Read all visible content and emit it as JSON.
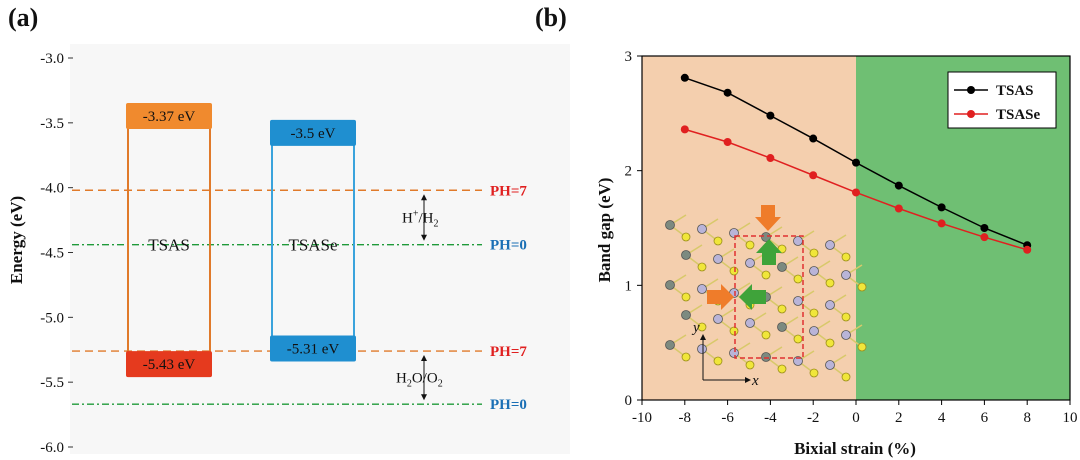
{
  "colors": {
    "orange": "#e07a2a",
    "orange_fill_top": "#f08a2e",
    "red_box": "#e53a1e",
    "blue": "#3aa3dc",
    "blue_fill": "#1f8fd0",
    "green_line": "#1f9a3a",
    "red_label": "#e02020",
    "blue_label": "#1a6fb5",
    "salmon_bg": "#f4cfae",
    "green_bg": "#6fbf73",
    "series_black": "#000000",
    "series_red": "#e02020"
  },
  "panel_labels": {
    "a": "(a)",
    "b": "(b)"
  },
  "chart_data": [
    {
      "type": "diagram",
      "title": "",
      "ylabel": "Energy (eV)",
      "ylim": [
        -6.0,
        -3.0
      ],
      "yticks": [
        -3.0,
        -3.5,
        -4.0,
        -4.5,
        -5.0,
        -5.5,
        -6.0
      ],
      "ytick_labels": [
        "-3.0",
        "-3.5",
        "-4.0",
        "-4.5",
        "-5.0",
        "-5.5",
        "-6.0"
      ],
      "materials": [
        {
          "name": "TSAS",
          "cbm": -3.37,
          "vbm": -5.43,
          "cbm_label": "-3.37 eV",
          "vbm_label": "-5.43 eV"
        },
        {
          "name": "TSASe",
          "cbm": -3.5,
          "vbm": -5.31,
          "cbm_label": "-3.5 eV",
          "vbm_label": "-5.31 eV"
        }
      ],
      "reference_levels": [
        {
          "label": "PH=7",
          "value": -4.02,
          "kind": "H+/H2"
        },
        {
          "label": "PH=0",
          "value": -4.44,
          "kind": "H+/H2"
        },
        {
          "label": "PH=7",
          "value": -5.26,
          "kind": "H2O/O2"
        },
        {
          "label": "PH=0",
          "value": -5.67,
          "kind": "H2O/O2"
        }
      ],
      "annotations": [
        {
          "base": "H",
          "sup": "+",
          "sep": "/H",
          "sub": "2"
        },
        {
          "base": "H",
          "sub1": "2",
          "mid": "O/O",
          "sub": "2"
        }
      ]
    },
    {
      "type": "line",
      "title": "",
      "xlabel": "Bixial strain (%)",
      "ylabel": "Band gap (eV)",
      "xlim": [
        -10,
        10
      ],
      "ylim": [
        0,
        3
      ],
      "xticks": [
        -10,
        -8,
        -6,
        -4,
        -2,
        0,
        2,
        4,
        6,
        8,
        10
      ],
      "yticks": [
        0,
        1,
        2,
        3
      ],
      "x": [
        -8,
        -6,
        -4,
        -2,
        0,
        2,
        4,
        6,
        8
      ],
      "series": [
        {
          "name": "TSAS",
          "values": [
            2.81,
            2.68,
            2.48,
            2.28,
            2.07,
            1.87,
            1.68,
            1.5,
            1.35
          ]
        },
        {
          "name": "TSASe",
          "values": [
            2.36,
            2.25,
            2.11,
            1.96,
            1.81,
            1.67,
            1.54,
            1.42,
            1.31
          ]
        }
      ],
      "regions": [
        {
          "from": -10,
          "to": 0,
          "color": "salmon"
        },
        {
          "from": 0,
          "to": 10,
          "color": "green"
        }
      ],
      "legend_position": "top-right",
      "inset": {
        "axis_x": "x",
        "axis_y": "y"
      }
    }
  ]
}
